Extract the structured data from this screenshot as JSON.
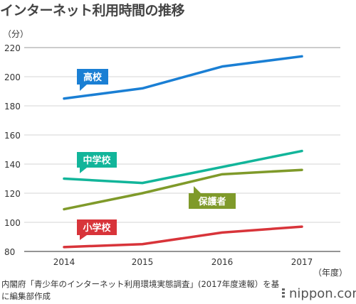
{
  "title": "インターネット利用時間の推移",
  "source": "内閣府「青少年のインターネット利用環境実態調査」(2017年度速報）を基に編集部作成",
  "logo": "nippon.com",
  "chart_data": {
    "type": "line",
    "title": "インターネット利用時間の推移",
    "ylabel": "（分）",
    "xlabel": "（年度）",
    "x": [
      2014,
      2015,
      2016,
      2017
    ],
    "ylim": [
      80,
      220
    ],
    "yticks": [
      80,
      100,
      120,
      140,
      160,
      180,
      200,
      220
    ],
    "grid": "horizontal",
    "series": [
      {
        "name": "高校",
        "values": [
          185,
          192,
          207,
          214
        ],
        "color": "#1a7fd4"
      },
      {
        "name": "中学校",
        "values": [
          130,
          127,
          138,
          149
        ],
        "color": "#12b59a"
      },
      {
        "name": "保護者",
        "values": [
          109,
          120,
          133,
          136
        ],
        "color": "#7f9a2a"
      },
      {
        "name": "小学校",
        "values": [
          83,
          85,
          93,
          97
        ],
        "color": "#d8343a"
      }
    ]
  }
}
